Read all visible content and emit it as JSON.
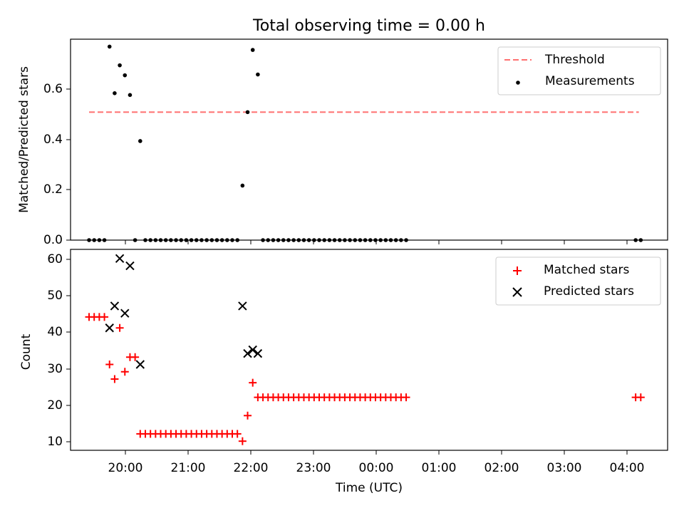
{
  "figure": {
    "title": "Total observing time = 0.00 h",
    "xlabel": "Time (UTC)"
  },
  "colors": {
    "threshold": "#ff7070",
    "measurements": "#000000",
    "matched": "#ff0000",
    "predicted": "#000000"
  },
  "chart_data": [
    {
      "type": "scatter",
      "ylabel": "Matched/Predicted stars",
      "xlim_hours": [
        19.31,
        28.65
      ],
      "ylim": [
        0,
        0.785
      ],
      "yticks": [
        0.0,
        0.2,
        0.4,
        0.6
      ],
      "ytick_labels": [
        "0.0",
        "0.2",
        "0.4",
        "0.6"
      ],
      "xticks": [
        20,
        21,
        22,
        23,
        24,
        25,
        26,
        27,
        28
      ],
      "legend": {
        "position": "upper right",
        "entries": [
          "Threshold",
          "Measurements"
        ]
      },
      "threshold": {
        "name": "Threshold",
        "value": 0.5,
        "x_range": [
          19.6,
          28.2
        ],
        "style": "dashed"
      },
      "series": [
        {
          "name": "Measurements",
          "marker": "dot",
          "x": [
            19.6,
            19.68,
            19.76,
            19.84,
            19.92,
            20.0,
            20.08,
            20.16,
            20.24,
            20.32,
            20.4,
            20.48,
            20.56,
            20.64,
            20.72,
            20.8,
            20.88,
            20.96,
            21.04,
            21.12,
            21.2,
            21.28,
            21.36,
            21.44,
            21.52,
            21.6,
            21.68,
            21.76,
            21.84,
            21.92,
            22.0,
            22.08,
            22.16,
            22.24,
            22.32,
            22.4,
            22.48,
            22.56,
            22.64,
            22.72,
            22.8,
            22.88,
            22.96,
            23.04,
            23.12,
            23.2,
            23.28,
            23.36,
            23.44,
            23.52,
            23.6,
            23.68,
            23.76,
            23.84,
            23.92,
            24.0,
            24.08,
            24.16,
            24.24,
            24.32,
            24.4,
            24.48,
            24.56,
            28.15,
            28.23
          ],
          "y": [
            0,
            0,
            0,
            0,
            0.756,
            0.574,
            0.683,
            0.644,
            0.567,
            0,
            0.387,
            0,
            0,
            0,
            0,
            0,
            0,
            0,
            0,
            0,
            0,
            0,
            0,
            0,
            0,
            0,
            0,
            0,
            0,
            0,
            0.213,
            0.5,
            0.743,
            0.647,
            0,
            0,
            0,
            0,
            0,
            0,
            0,
            0,
            0,
            0,
            0,
            0,
            0,
            0,
            0,
            0,
            0,
            0,
            0,
            0,
            0,
            0,
            0,
            0,
            0,
            0,
            0,
            0,
            0,
            0,
            0
          ]
        }
      ]
    },
    {
      "type": "scatter",
      "ylabel": "Count",
      "xlim_hours": [
        19.31,
        28.65
      ],
      "ylim": [
        7.5,
        62.5
      ],
      "yticks": [
        10,
        20,
        30,
        40,
        50,
        60
      ],
      "ytick_labels": [
        "10",
        "20",
        "30",
        "40",
        "50",
        "60"
      ],
      "xticks": [
        20,
        21,
        22,
        23,
        24,
        25,
        26,
        27,
        28
      ],
      "xtick_labels": [
        "20:00",
        "21:00",
        "22:00",
        "23:00",
        "00:00",
        "01:00",
        "02:00",
        "03:00",
        "04:00"
      ],
      "legend": {
        "position": "upper right",
        "entries": [
          "Matched stars",
          "Predicted stars"
        ]
      },
      "series": [
        {
          "name": "Matched stars",
          "marker": "plus",
          "x": [
            19.6,
            19.68,
            19.76,
            19.84,
            19.92,
            20.0,
            20.08,
            20.16,
            20.24,
            20.32,
            20.4,
            20.48,
            20.56,
            20.64,
            20.72,
            20.8,
            20.88,
            20.96,
            21.04,
            21.12,
            21.2,
            21.28,
            21.36,
            21.44,
            21.52,
            21.6,
            21.68,
            21.76,
            21.84,
            21.92,
            22.0,
            22.08,
            22.16,
            22.24,
            22.32,
            22.4,
            22.48,
            22.56,
            22.64,
            22.72,
            22.8,
            22.88,
            22.96,
            23.04,
            23.12,
            23.2,
            23.28,
            23.36,
            23.44,
            23.52,
            23.6,
            23.68,
            23.76,
            23.84,
            23.92,
            24.0,
            24.08,
            24.16,
            24.24,
            24.32,
            24.4,
            24.48,
            24.56,
            28.15,
            28.23
          ],
          "y": [
            44,
            44,
            44,
            44,
            31,
            27,
            41,
            29,
            33,
            33,
            12,
            12,
            12,
            12,
            12,
            12,
            12,
            12,
            12,
            12,
            12,
            12,
            12,
            12,
            12,
            12,
            12,
            12,
            12,
            12,
            10,
            17,
            26,
            22,
            22,
            22,
            22,
            22,
            22,
            22,
            22,
            22,
            22,
            22,
            22,
            22,
            22,
            22,
            22,
            22,
            22,
            22,
            22,
            22,
            22,
            22,
            22,
            22,
            22,
            22,
            22,
            22,
            22,
            22,
            22
          ]
        },
        {
          "name": "Predicted stars",
          "marker": "x",
          "x": [
            19.92,
            20.0,
            20.08,
            20.16,
            20.24,
            20.4,
            22.0,
            22.08,
            22.16,
            22.24
          ],
          "y": [
            41,
            47,
            60,
            45,
            58,
            31,
            47,
            34,
            35,
            34
          ]
        }
      ]
    }
  ]
}
